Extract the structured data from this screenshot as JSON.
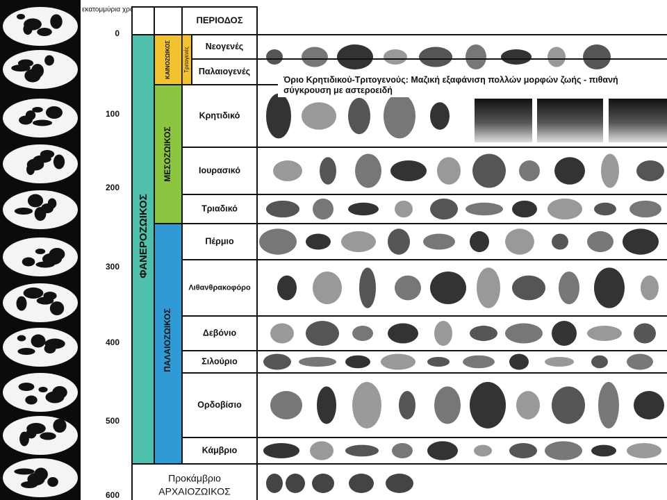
{
  "axis": {
    "label": "εκατομμύρια χρόνια",
    "ticks": [
      0,
      100,
      200,
      300,
      400,
      500,
      600
    ]
  },
  "header": {
    "period": "ΠΕΡΙΟΔΟΣ"
  },
  "eon": "ΦΑΝΕΡΟΖΩΙΚΟΣ",
  "eras": [
    "ΚΑΙΝΟΖΩΙΚΟΣ",
    "ΜΕΣΟΖΩΙΚΟΣ",
    "ΠΑΛΑΙΟΖΩΙΚΟΣ"
  ],
  "subera": "Τριτογενές",
  "periods": [
    "Νεογενές",
    "Παλαιογενές",
    "Κρητιδικό",
    "Ιουρασικό",
    "Τριαδικό",
    "Πέρμιο",
    "Λιθανθρακοφόρο",
    "Δεβόνιο",
    "Σιλούριο",
    "Ορδοβίσιο",
    "Κάμβριο"
  ],
  "precambrian": {
    "name": "Προκάμβριο",
    "eon": "ΑΡΧΑΙΟΖΩΙΚΟΣ"
  },
  "annotation": "Όριο Κρητιδικού-Τριτογενούς: Μαζική εξαφάνιση πολλών μορφών ζωής - πιθανή σύγκρουση με αστεροειδή"
}
